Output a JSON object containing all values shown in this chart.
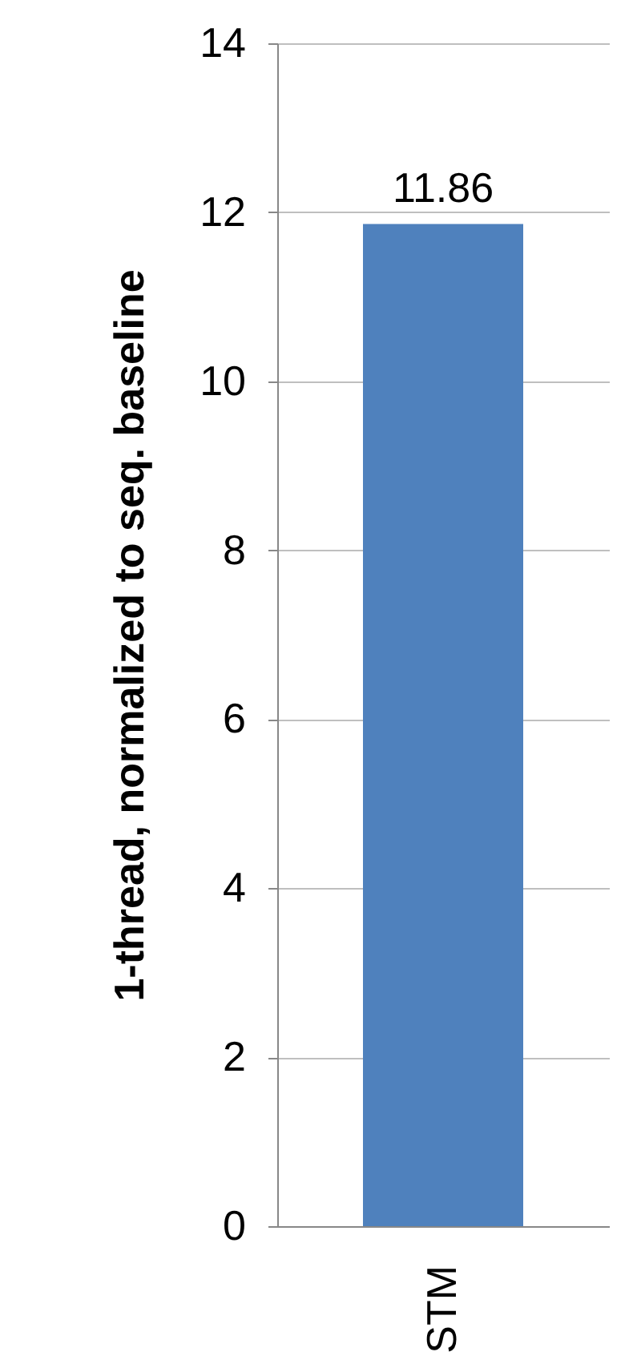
{
  "chart_data": {
    "type": "bar",
    "ylabel": "1-thread, normalized to seq. baseline",
    "categories": [
      "STM"
    ],
    "series": [
      {
        "color": "#4f81bd",
        "values": [
          11.86
        ]
      }
    ],
    "ylim": [
      0,
      14
    ],
    "yticks": [
      0,
      2,
      4,
      6,
      8,
      10,
      12,
      14
    ],
    "grid": "y",
    "data_labels": true,
    "legend": false
  }
}
